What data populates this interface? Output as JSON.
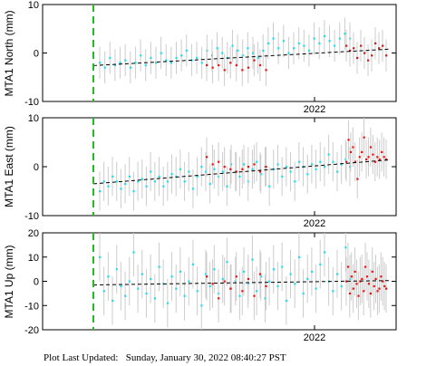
{
  "footer": {
    "label": "Plot Last Updated:",
    "value": "Sunday, January 30, 2022 08:40:27 PST"
  },
  "colors": {
    "cyan": "#22ddee",
    "red": "#ee1111",
    "errorbar": "#cccccc",
    "trend": "#000000",
    "marker_line": "#22bb22"
  },
  "chart_data": [
    {
      "type": "scatter",
      "ylabel": "MTA1 North (mm)",
      "ylim": [
        -10,
        10
      ],
      "yticks": [
        -10,
        0,
        10
      ],
      "xtick_labels": [
        "2022"
      ],
      "grid": false,
      "error_bar_mm": 3.3,
      "dashed_vertical_line": "start of record",
      "trend": {
        "start": -2.6,
        "end": 0.8
      },
      "series": [
        {
          "color": "cyan",
          "values": [
            -2,
            -3,
            -1,
            -2.5,
            -2,
            -1.5,
            -3,
            -2,
            -0.5,
            -2.5,
            -1,
            -2,
            0,
            -1.5,
            -2,
            -1,
            -0.5,
            0.5,
            -1.5,
            -1,
            -2,
            0.5,
            -0.5,
            1,
            0,
            -1,
            1.5,
            0.5,
            -0.5,
            1,
            0,
            -1,
            0.5,
            2,
            3,
            1,
            2.5,
            0,
            1,
            2,
            1.5,
            0.5,
            3,
            2,
            3.5,
            2.5,
            1.5,
            3,
            4,
            3
          ]
        },
        {
          "color": "red",
          "values": [
            -2.5,
            -3,
            -2.5,
            -3.5,
            -2,
            -2.5,
            -3.5,
            -3,
            -1.5,
            -2.5,
            -3.5,
            1.5,
            0.5,
            1,
            -1,
            1.5,
            0,
            -1.5,
            -0.5,
            2,
            1,
            1.5,
            -0.5
          ]
        }
      ]
    },
    {
      "type": "scatter",
      "ylabel": "MTA1 East (mm)",
      "ylim": [
        -10,
        10
      ],
      "yticks": [
        -10,
        0,
        10
      ],
      "xtick_labels": [
        "2022"
      ],
      "grid": false,
      "error_bar_mm": 4,
      "dashed_vertical_line": "start of record",
      "trend": {
        "start": -3.5,
        "end": 1.4
      },
      "series": [
        {
          "color": "cyan",
          "values": [
            -5,
            -3,
            -4,
            -2,
            -3,
            -4.5,
            -3.5,
            -2,
            -5,
            -3,
            -2.5,
            -4,
            -1,
            -3,
            -2,
            -4,
            -3,
            -1.5,
            -2,
            -0.5,
            -3,
            -1,
            -4.5,
            -2,
            0,
            -1,
            -3.5,
            -0.5,
            -2,
            -1,
            -4,
            0.5,
            -1,
            -2,
            0.5,
            -3,
            -0.5,
            1,
            -1.5,
            0,
            -4,
            -0.5,
            0.5,
            -2,
            0,
            -1,
            -3,
            1,
            0,
            -1.5,
            0.5,
            -0.5,
            1,
            0,
            2.5,
            1,
            -1,
            0.5,
            1.5,
            0
          ]
        },
        {
          "color": "red",
          "values": [
            2,
            0.5,
            1,
            0,
            -0.5,
            -1,
            -0.5,
            0,
            0.5,
            -1,
            0,
            1,
            5.5,
            3,
            4,
            1,
            -2.5,
            2,
            3,
            6,
            1.5,
            2,
            4,
            2.5,
            1,
            2,
            1.5,
            3,
            2,
            1.5
          ]
        }
      ]
    },
    {
      "type": "scatter",
      "ylabel": "MTA1 Up (mm)",
      "ylim": [
        -20,
        20
      ],
      "yticks": [
        -20,
        -10,
        0,
        10,
        20
      ],
      "xtick_labels": [
        "2022"
      ],
      "grid": false,
      "error_bar_mm": 10,
      "dashed_vertical_line": "start of record",
      "trend": {
        "start": -1.5,
        "end": 0.3
      },
      "series": [
        {
          "color": "cyan",
          "values": [
            10,
            -4,
            2,
            -8,
            5,
            -2,
            -6,
            0,
            12,
            -3,
            3,
            -5,
            1,
            -7,
            6,
            -1,
            -9,
            2,
            -3,
            4,
            -6,
            0,
            7,
            -4,
            -10,
            3,
            -2,
            5,
            -5,
            1,
            8,
            -3,
            0,
            -6,
            4,
            -1,
            9,
            -4,
            2,
            -7,
            0,
            5,
            -2,
            6,
            -8,
            3,
            -1,
            10,
            -5,
            1,
            4,
            -3,
            7,
            12,
            0,
            -4,
            3,
            -2,
            14,
            1
          ]
        },
        {
          "color": "red",
          "values": [
            2,
            -1,
            -7,
            0,
            -3,
            2,
            -4,
            1,
            -6,
            3,
            -2,
            0,
            6,
            -5,
            2,
            -3,
            4,
            -1,
            -6,
            0,
            1,
            -4,
            6,
            2,
            -1,
            -5,
            4,
            -2,
            1,
            -4,
            -3,
            2,
            0,
            -2,
            -3
          ]
        }
      ]
    }
  ]
}
